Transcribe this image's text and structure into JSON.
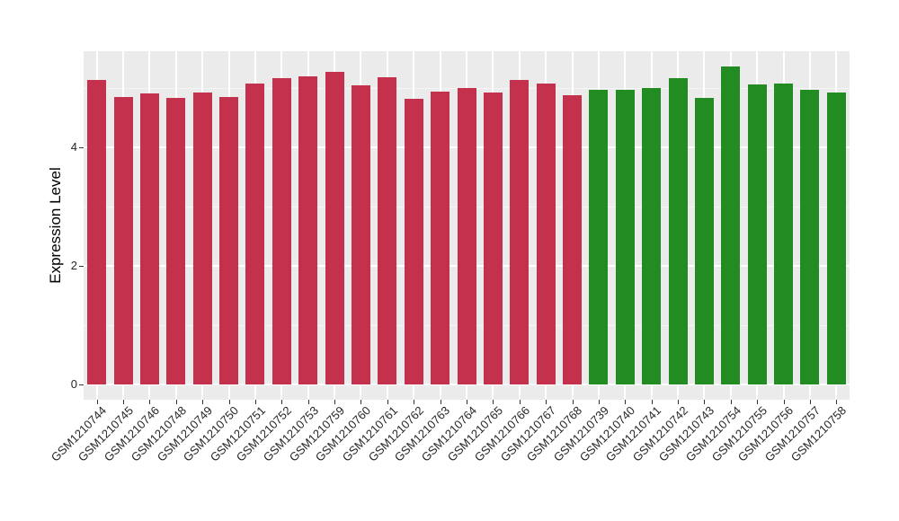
{
  "chart_data": {
    "type": "bar",
    "title": "",
    "xlabel": "",
    "ylabel": "Expression Level",
    "ylim": [
      0,
      5.62
    ],
    "yticks": [
      0,
      2,
      4
    ],
    "minor_yticks": [
      1,
      3,
      5
    ],
    "grid": "on",
    "legend": "none",
    "panel_background": "#EBEBEB",
    "major_grid_color": "#FFFFFF",
    "group_colors": {
      "red_group": "#C3314C",
      "green_group": "#228B22"
    },
    "bars": [
      {
        "label": "GSM1210744",
        "value": 5.13,
        "color": "#C3314C"
      },
      {
        "label": "GSM1210745",
        "value": 4.85,
        "color": "#C3314C"
      },
      {
        "label": "GSM1210746",
        "value": 4.91,
        "color": "#C3314C"
      },
      {
        "label": "GSM1210748",
        "value": 4.83,
        "color": "#C3314C"
      },
      {
        "label": "GSM1210749",
        "value": 4.93,
        "color": "#C3314C"
      },
      {
        "label": "GSM1210750",
        "value": 4.85,
        "color": "#C3314C"
      },
      {
        "label": "GSM1210751",
        "value": 5.07,
        "color": "#C3314C"
      },
      {
        "label": "GSM1210752",
        "value": 5.16,
        "color": "#C3314C"
      },
      {
        "label": "GSM1210753",
        "value": 5.2,
        "color": "#C3314C"
      },
      {
        "label": "GSM1210759",
        "value": 5.27,
        "color": "#C3314C"
      },
      {
        "label": "GSM1210760",
        "value": 5.04,
        "color": "#C3314C"
      },
      {
        "label": "GSM1210761",
        "value": 5.18,
        "color": "#C3314C"
      },
      {
        "label": "GSM1210762",
        "value": 4.82,
        "color": "#C3314C"
      },
      {
        "label": "GSM1210763",
        "value": 4.94,
        "color": "#C3314C"
      },
      {
        "label": "GSM1210764",
        "value": 5.0,
        "color": "#C3314C"
      },
      {
        "label": "GSM1210765",
        "value": 4.92,
        "color": "#C3314C"
      },
      {
        "label": "GSM1210766",
        "value": 5.13,
        "color": "#C3314C"
      },
      {
        "label": "GSM1210767",
        "value": 5.08,
        "color": "#C3314C"
      },
      {
        "label": "GSM1210768",
        "value": 4.88,
        "color": "#C3314C"
      },
      {
        "label": "GSM1210739",
        "value": 4.97,
        "color": "#228B22"
      },
      {
        "label": "GSM1210740",
        "value": 4.97,
        "color": "#228B22"
      },
      {
        "label": "GSM1210741",
        "value": 5.0,
        "color": "#228B22"
      },
      {
        "label": "GSM1210742",
        "value": 5.17,
        "color": "#228B22"
      },
      {
        "label": "GSM1210743",
        "value": 4.83,
        "color": "#228B22"
      },
      {
        "label": "GSM1210754",
        "value": 5.36,
        "color": "#228B22"
      },
      {
        "label": "GSM1210755",
        "value": 5.06,
        "color": "#228B22"
      },
      {
        "label": "GSM1210756",
        "value": 5.07,
        "color": "#228B22"
      },
      {
        "label": "GSM1210757",
        "value": 4.97,
        "color": "#228B22"
      },
      {
        "label": "GSM1210758",
        "value": 4.93,
        "color": "#228B22"
      }
    ]
  }
}
